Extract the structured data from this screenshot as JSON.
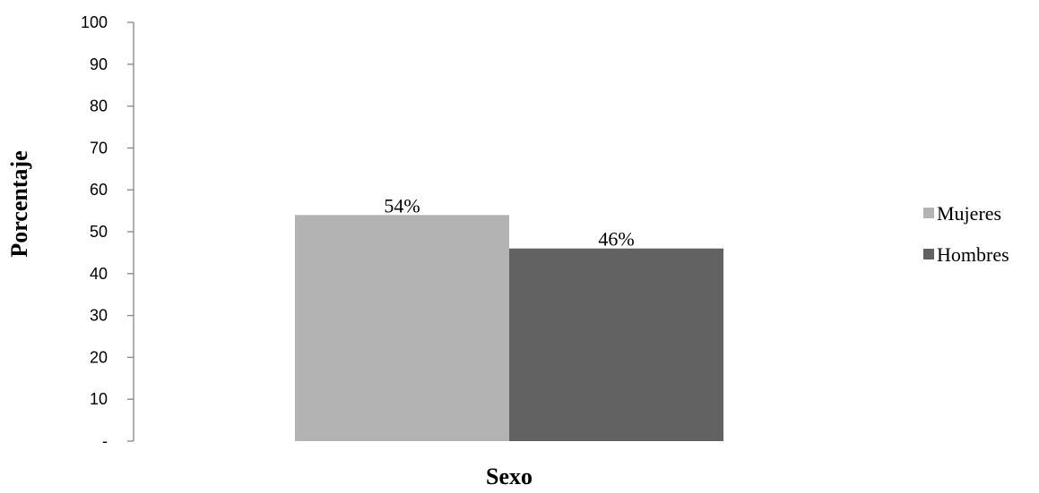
{
  "chart_data": {
    "type": "bar",
    "title": "",
    "xlabel": "Sexo",
    "ylabel": "Porcentaje",
    "ylim": [
      0,
      100
    ],
    "yticks": [
      {
        "value": 0,
        "label": "-"
      },
      {
        "value": 10,
        "label": "10"
      },
      {
        "value": 20,
        "label": "20"
      },
      {
        "value": 30,
        "label": "30"
      },
      {
        "value": 40,
        "label": "40"
      },
      {
        "value": 50,
        "label": "50"
      },
      {
        "value": 60,
        "label": "60"
      },
      {
        "value": 70,
        "label": "70"
      },
      {
        "value": 80,
        "label": "80"
      },
      {
        "value": 90,
        "label": "90"
      },
      {
        "value": 100,
        "label": "100"
      }
    ],
    "grid": false,
    "legend_position": "right",
    "series": [
      {
        "name": "Mujeres",
        "values": [
          54
        ],
        "data_labels": [
          "54%"
        ],
        "color": "#b3b3b3"
      },
      {
        "name": "Hombres",
        "values": [
          46
        ],
        "data_labels": [
          "46%"
        ],
        "color": "#626262"
      }
    ]
  }
}
